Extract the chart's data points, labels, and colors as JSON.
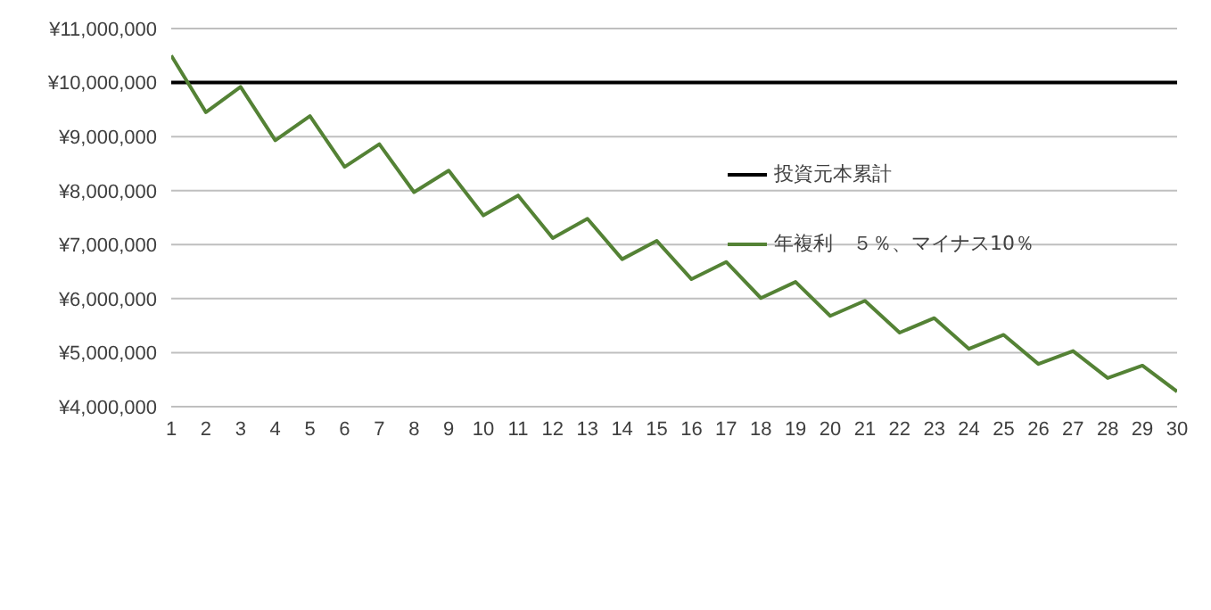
{
  "chart_data": {
    "type": "line",
    "x": [
      1,
      2,
      3,
      4,
      5,
      6,
      7,
      8,
      9,
      10,
      11,
      12,
      13,
      14,
      15,
      16,
      17,
      18,
      19,
      20,
      21,
      22,
      23,
      24,
      25,
      26,
      27,
      28,
      29,
      30
    ],
    "series": [
      {
        "name": "投資元本累計",
        "color": "#000000",
        "values": [
          10000000,
          10000000,
          10000000,
          10000000,
          10000000,
          10000000,
          10000000,
          10000000,
          10000000,
          10000000,
          10000000,
          10000000,
          10000000,
          10000000,
          10000000,
          10000000,
          10000000,
          10000000,
          10000000,
          10000000,
          10000000,
          10000000,
          10000000,
          10000000,
          10000000,
          10000000,
          10000000,
          10000000,
          10000000,
          10000000
        ]
      },
      {
        "name": "年複利　５％、マイナス10％",
        "color": "#548235",
        "values": [
          10500000,
          9450000,
          9920000,
          8930000,
          9380000,
          8440000,
          8860000,
          7970000,
          8370000,
          7540000,
          7910000,
          7120000,
          7480000,
          6730000,
          7070000,
          6360000,
          6680000,
          6010000,
          6310000,
          5680000,
          5960000,
          5370000,
          5640000,
          5070000,
          5330000,
          4790000,
          5030000,
          4530000,
          4760000,
          4280000
        ]
      }
    ],
    "xlim": [
      1,
      30
    ],
    "xticks": [
      1,
      2,
      3,
      4,
      5,
      6,
      7,
      8,
      9,
      10,
      11,
      12,
      13,
      14,
      15,
      16,
      17,
      18,
      19,
      20,
      21,
      22,
      23,
      24,
      25,
      26,
      27,
      28,
      29,
      30
    ],
    "ylim": [
      4000000,
      11000000
    ],
    "yticks": [
      {
        "value": 4000000,
        "label": "¥4,000,000"
      },
      {
        "value": 5000000,
        "label": "¥5,000,000"
      },
      {
        "value": 6000000,
        "label": "¥6,000,000"
      },
      {
        "value": 7000000,
        "label": "¥7,000,000"
      },
      {
        "value": 8000000,
        "label": "¥8,000,000"
      },
      {
        "value": 9000000,
        "label": "¥9,000,000"
      },
      {
        "value": 10000000,
        "label": "¥10,000,000"
      },
      {
        "value": 11000000,
        "label": "¥11,000,000"
      }
    ],
    "grid": "y",
    "legend": "right",
    "marker": "none",
    "line_style": "solid"
  }
}
